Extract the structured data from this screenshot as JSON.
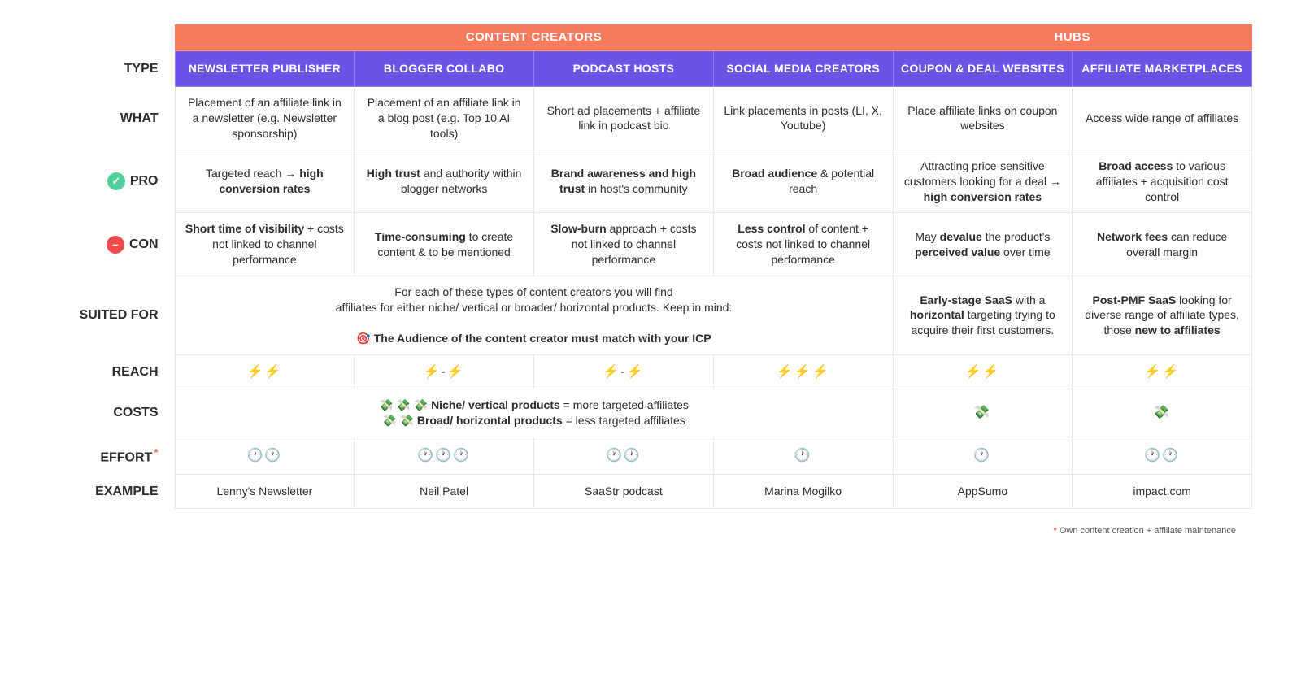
{
  "colors": {
    "group_creators": "#f47b5d",
    "group_hubs": "#f47b5d",
    "type_header_bg": "#6b53e6",
    "pro_badge": "#4fcf9c",
    "con_badge": "#f04a4a",
    "border": "#e9e9e9",
    "text": "#2b2b2b"
  },
  "groupHeaders": {
    "creators": "CONTENT CREATORS",
    "hubs": "HUBS"
  },
  "rowLabels": {
    "type": "TYPE",
    "what": "WHAT",
    "pro": "PRO",
    "con": "CON",
    "suited": "SUITED FOR",
    "reach": "REACH",
    "costs": "COSTS",
    "effort": "EFFORT",
    "example": "EXAMPLE"
  },
  "columns": [
    {
      "type": "NEWSLETTER PUBLISHER",
      "what": "Placement of an affiliate link in a newsletter (e.g. Newsletter sponsorship)",
      "pro": "Targeted reach → <b>high conversion rates</b>",
      "con": "<b>Short time of visibility</b> + costs not linked to channel performance",
      "reach": "⚡⚡",
      "effort": "🕐🕐",
      "example": "Lenny's Newsletter"
    },
    {
      "type": "BLOGGER COLLABO",
      "what": "Placement of an affiliate link in a blog post (e.g. Top 10 AI tools)",
      "pro": "<b>High trust</b> and authority within blogger networks",
      "con": "<b>Time-consuming</b> to create content & to be mentioned",
      "reach": "⚡-⚡",
      "effort": "🕐🕐🕐",
      "example": "Neil Patel"
    },
    {
      "type": "PODCAST HOSTS",
      "what": "Short ad placements + affiliate link in podcast bio",
      "pro": "<b>Brand awareness and high trust</b> in host's community",
      "con": "<b>Slow-burn</b> approach + costs not linked to channel performance",
      "reach": "⚡-⚡",
      "effort": "🕐🕐",
      "example": "SaaStr podcast"
    },
    {
      "type": "SOCIAL MEDIA CREATORS",
      "what": "Link placements in posts (LI, X, Youtube)",
      "pro": "<b>Broad audience</b> & potential reach",
      "con": "<b>Less control</b> of content + costs not linked to channel performance",
      "reach": "⚡⚡⚡",
      "effort": "🕐",
      "example": "Marina Mogilko"
    },
    {
      "type": "COUPON & DEAL WEBSITES",
      "what": "Place affiliate links on coupon websites",
      "pro": "Attracting price-sensitive customers looking for a deal → <b>high conversion rates</b>",
      "con": "May <b>devalue</b> the product's <b>perceived value</b> over time",
      "suited": "<b>Early-stage SaaS</b> with a <b>horizontal</b> targeting trying to acquire their first customers.",
      "reach": "⚡⚡",
      "costs": "💸",
      "effort": "🕐",
      "example": "AppSumo"
    },
    {
      "type": "AFFILIATE MARKETPLACES",
      "what": "Access wide range of affiliates",
      "pro": "<b>Broad access</b> to various affiliates + acquisition cost control",
      "con": "<b>Network fees</b> can reduce overall margin",
      "suited": "<b>Post-PMF SaaS</b> looking for diverse range of affiliate types, those <b>new to affiliates</b>",
      "reach": "⚡⚡",
      "costs": "💸",
      "effort": "🕐🕐",
      "example": "impact.com"
    }
  ],
  "suitedMerged": {
    "line1": "For each of these types of content creators you will find",
    "line2": "affiliates for either niche/ vertical or broader/ horizontal products. Keep in mind:",
    "highlight": "🎯 The Audience of the content creator must match with your ICP"
  },
  "costsMerged": {
    "line1": "💸 💸 💸   <b>Niche/ vertical products</b> = more targeted affiliates",
    "line2": "💸 💸   <b>Broad/ horizontal products</b> = less targeted affiliates"
  },
  "footnote": {
    "marker": "*",
    "text": "Own content creation + affiliate maintenance"
  }
}
